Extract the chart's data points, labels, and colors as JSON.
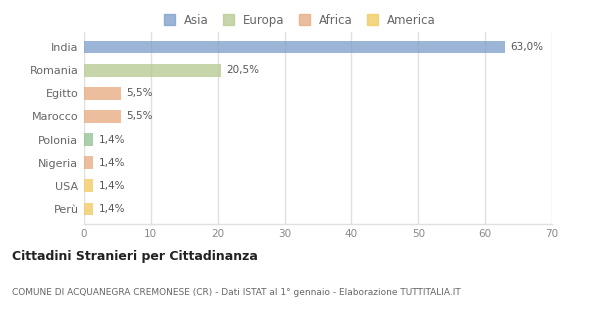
{
  "countries": [
    "India",
    "Romania",
    "Egitto",
    "Marocco",
    "Polonia",
    "Nigeria",
    "USA",
    "Perù"
  ],
  "values": [
    63.0,
    20.5,
    5.5,
    5.5,
    1.4,
    1.4,
    1.4,
    1.4
  ],
  "labels": [
    "63,0%",
    "20,5%",
    "5,5%",
    "5,5%",
    "1,4%",
    "1,4%",
    "1,4%",
    "1,4%"
  ],
  "colors": [
    "#7b9dc9",
    "#b5c98e",
    "#e8a87c",
    "#e8a87c",
    "#8ec08e",
    "#e8a87c",
    "#f0c85a",
    "#f0c85a"
  ],
  "legend_labels": [
    "Asia",
    "Europa",
    "Africa",
    "America"
  ],
  "legend_colors": [
    "#7b9dc9",
    "#b5c98e",
    "#e8a87c",
    "#f0c85a"
  ],
  "title": "Cittadini Stranieri per Cittadinanza",
  "subtitle": "COMUNE DI ACQUANEGRA CREMONESE (CR) - Dati ISTAT al 1° gennaio - Elaborazione TUTTITALIA.IT",
  "xlim": [
    0,
    70
  ],
  "xticks": [
    0,
    10,
    20,
    30,
    40,
    50,
    60,
    70
  ],
  "bg_color": "#ffffff",
  "plot_bg_color": "#ffffff",
  "grid_color": "#e0e0e0"
}
